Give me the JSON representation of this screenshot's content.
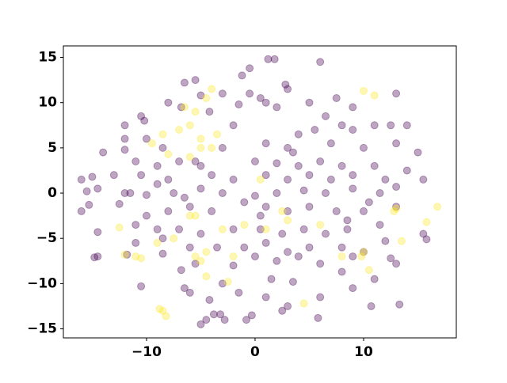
{
  "chart_data": {
    "type": "scatter",
    "alpha": 0.35,
    "xlim": [
      -17.66,
      18.54
    ],
    "ylim": [
      -16.0,
      16.27
    ],
    "xticks": [
      {
        "value": -10,
        "label": "−10"
      },
      0,
      10
    ],
    "yticks": [
      {
        "value": -15,
        "label": "−15"
      },
      {
        "value": -10,
        "label": "−10"
      },
      {
        "value": -5,
        "label": "−5"
      },
      0,
      5,
      10,
      15
    ],
    "series": [
      {
        "color": "#440154",
        "x": [
          1.2,
          1.8,
          6,
          -0.5,
          -1.2,
          -6.5,
          -5.5,
          2.8,
          3,
          -3,
          -0.5,
          0.5,
          -8,
          7.5,
          13,
          -1.5,
          1,
          -5,
          5,
          9,
          -10.5,
          -10.2,
          2,
          -4.2,
          -6.8,
          -12,
          12.5,
          14,
          -2,
          6.5,
          8,
          11,
          -10,
          -12,
          4,
          5.5,
          9,
          -14,
          -12,
          -8.5,
          -3,
          1,
          3,
          7,
          10,
          13,
          15,
          -11,
          -9,
          -7,
          -5,
          0,
          2,
          4,
          6,
          8,
          11,
          14,
          -16,
          -15,
          -13,
          -10.5,
          -8,
          -4,
          -2,
          1,
          3,
          5,
          7,
          9,
          12,
          15.5,
          -15.5,
          -14.5,
          -12,
          -10,
          -7.5,
          -5,
          -3,
          0,
          2,
          4.5,
          6.5,
          9,
          11.5,
          13,
          -16,
          -15.3,
          -12.5,
          -10,
          -8,
          -6,
          -4,
          -1,
          1,
          3,
          5,
          7.5,
          10,
          13,
          -14.5,
          -11,
          -9,
          -7,
          -5,
          -2,
          0.5,
          2.5,
          4.5,
          6.5,
          8.5,
          11.5,
          15.5,
          -14.8,
          -14.5,
          -11,
          -8.5,
          -6,
          -3.5,
          -1,
          1,
          3,
          5,
          8,
          10,
          12,
          15.8,
          -11.8,
          -8.5,
          -5.5,
          -2,
          0,
          2,
          4,
          6,
          9,
          12.5,
          13,
          -10.5,
          -6.8,
          -6.5,
          -3,
          1.5,
          3.5,
          8,
          11,
          -6,
          -4.2,
          -1.5,
          1,
          6,
          9,
          -5,
          -4.5,
          -3.8,
          -3.2,
          -2.8,
          -0.3,
          -0.8,
          2.5,
          3,
          5.8,
          13.3,
          10.7,
          -6.5,
          -9,
          -11.5,
          -5.5,
          0.5,
          3.5,
          8.5,
          10.5
        ],
        "y": [
          14.8,
          14.8,
          14.5,
          13.8,
          13,
          12.2,
          12.5,
          12,
          11.5,
          11,
          11,
          10.5,
          10,
          10.5,
          11,
          9.8,
          10,
          10.8,
          10,
          9.5,
          8.5,
          8,
          9.5,
          9,
          9.5,
          7.5,
          7.5,
          7.5,
          7.5,
          8.5,
          7.5,
          7.5,
          6,
          6,
          6.5,
          7,
          7,
          4.5,
          4.8,
          5,
          5,
          5.5,
          5,
          5.5,
          5,
          5.5,
          4.5,
          3.5,
          3,
          3.5,
          3,
          3.5,
          3.3,
          3,
          3.5,
          3,
          3,
          2.5,
          1.5,
          1.8,
          2,
          2,
          1.5,
          2,
          1.5,
          2,
          1.5,
          2,
          1.5,
          2,
          1.5,
          1.5,
          0.2,
          0.5,
          0,
          -0.2,
          0,
          0.5,
          0,
          -0.3,
          0,
          0.3,
          0,
          0.5,
          0,
          0.7,
          -2,
          -1.3,
          -1.2,
          -2.5,
          -2,
          -1.5,
          -2,
          -1,
          -1.5,
          -2,
          -1.5,
          -2,
          -2,
          -1.5,
          -4.3,
          -3.5,
          -4,
          -4,
          -4.5,
          -4,
          -4,
          -4.5,
          -4,
          -4.5,
          -4,
          -3.5,
          -4.5,
          -7.1,
          -7,
          -5.5,
          -5,
          -6,
          -6,
          -6,
          -5.5,
          -6.5,
          -6,
          -6,
          -6.5,
          -5.3,
          -5.1,
          -6.8,
          -6.7,
          -7.8,
          -8,
          -7,
          -7.5,
          -7,
          -7.8,
          -7,
          -7.2,
          -7.8,
          -10.3,
          -8.5,
          -10.5,
          -10,
          -9.5,
          -9.8,
          -8.7,
          -9.5,
          -11,
          -11.8,
          -11,
          -11.5,
          -11.5,
          -10.5,
          -14.5,
          -14,
          -13.4,
          -13.4,
          -14,
          -13.5,
          -14,
          -13,
          -12.5,
          -13.8,
          -12.3,
          -12.5,
          -0.5,
          1,
          0,
          3.5,
          -2.5,
          4.5,
          -3,
          -1
        ]
      },
      {
        "color": "#fde725",
        "x": [
          -9.5,
          -8.5,
          -7,
          -6,
          -5,
          -4,
          -3.5,
          -6.5,
          -5.5,
          -4.5,
          -4,
          -8,
          -6,
          -5,
          10,
          11,
          -12.5,
          -9,
          -7.5,
          -6,
          -5.5,
          -3,
          -1,
          1,
          2.5,
          3,
          -12,
          -11,
          -10.5,
          -5.5,
          -5,
          -4.5,
          -2,
          -4.5,
          -2.5,
          -8.5,
          -8.8,
          -8.2,
          4.5,
          8,
          10,
          9.8,
          10.5,
          12.8,
          13,
          13.5,
          15.8,
          16.8,
          0.5,
          6
        ],
        "y": [
          5.5,
          6.5,
          7,
          7.5,
          6,
          5,
          6.5,
          9.5,
          9,
          10.5,
          11.5,
          4.3,
          4,
          5,
          11.3,
          10.8,
          -3.8,
          -5.5,
          -5,
          -2.5,
          -2.5,
          -4,
          -3.5,
          -4,
          -2,
          -3,
          -6.8,
          -7,
          -7.2,
          -7,
          -7.5,
          -6.5,
          -7,
          -9.2,
          -9.8,
          -13,
          -12.8,
          -13.6,
          -12.2,
          -7,
          -6.5,
          -7,
          -8.5,
          -2,
          -1.7,
          -5.3,
          -3.2,
          -1.5,
          1.5,
          -3.5
        ]
      }
    ]
  }
}
